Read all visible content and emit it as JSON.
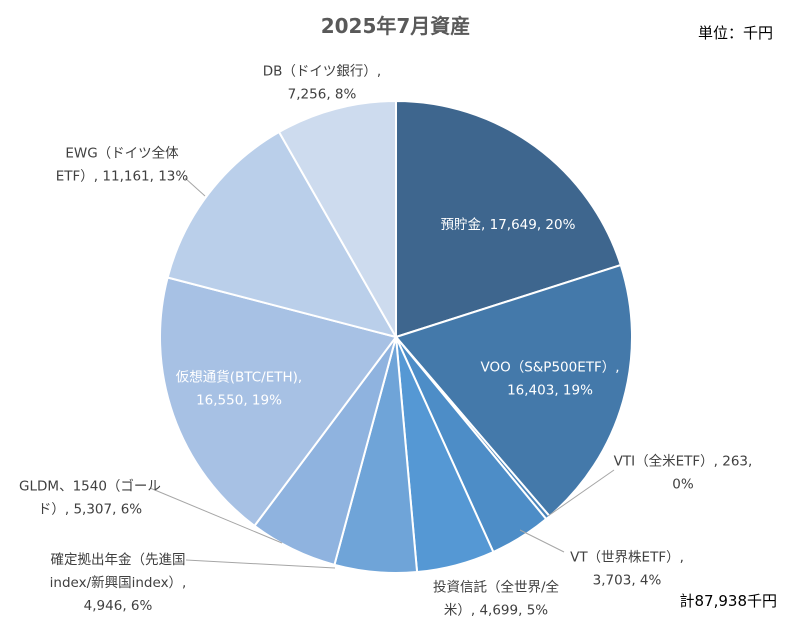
{
  "chart_data": {
    "type": "pie",
    "title": "2025年7月資産",
    "unit_note": "単位：千円",
    "total_note": "計87,938千円",
    "start_angle_deg": 0,
    "direction": "clockwise",
    "slices": [
      {
        "label": "預貯金",
        "value": 17649,
        "percent": 20,
        "color": "#3e668e",
        "lines": [
          "預貯金, 17,649, 20%"
        ],
        "label_inside": true,
        "text_color": "#ffffff"
      },
      {
        "label": "VOO（S&P500ETF）",
        "value": 16403,
        "percent": 19,
        "color": "#4479aa",
        "lines": [
          "VOO（S&P500ETF）,",
          "16,403, 19%"
        ],
        "label_inside": true,
        "text_color": "#ffffff"
      },
      {
        "label": "VTI（全米ETF）",
        "value": 263,
        "percent": 0,
        "color": "#4c86bc",
        "lines": [
          "VTI（全米ETF）, 263,",
          "0%"
        ],
        "label_inside": false,
        "text_color": "#404040"
      },
      {
        "label": "VT（世界株ETF）",
        "value": 3703,
        "percent": 4,
        "color": "#4d8dc7",
        "lines": [
          "VT（世界株ETF）,",
          "3,703, 4%"
        ],
        "label_inside": false,
        "text_color": "#404040"
      },
      {
        "label": "投資信託（全世界/全米）",
        "value": 4699,
        "percent": 5,
        "color": "#5598d4",
        "lines": [
          "投資信託（全世界/全",
          "米）, 4,699, 5%"
        ],
        "label_inside": false,
        "text_color": "#404040"
      },
      {
        "label": "確定拠出年金（先進国index/新興国index）",
        "value": 4946,
        "percent": 6,
        "color": "#6fa4d8",
        "lines": [
          "確定拠出年金（先進国",
          "index/新興国index）,",
          "4,946, 6%"
        ],
        "label_inside": false,
        "text_color": "#404040"
      },
      {
        "label": "GLDM、1540（ゴールド）",
        "value": 5307,
        "percent": 6,
        "color": "#8fb3df",
        "lines": [
          "GLDM、1540（ゴール",
          "ド）, 5,307, 6%"
        ],
        "label_inside": false,
        "text_color": "#404040"
      },
      {
        "label": "仮想通貨(BTC/ETH)",
        "value": 16550,
        "percent": 19,
        "color": "#a7c1e4",
        "lines": [
          "仮想通貨(BTC/ETH),",
          "16,550, 19%"
        ],
        "label_inside": true,
        "text_color": "#ffffff"
      },
      {
        "label": "EWG（ドイツ全体ETF）",
        "value": 11161,
        "percent": 13,
        "color": "#bacfea",
        "lines": [
          "EWG（ドイツ全体",
          "ETF）, 11,161, 13%"
        ],
        "label_inside": false,
        "text_color": "#404040"
      },
      {
        "label": "DB（ドイツ銀行）",
        "value": 7256,
        "percent": 8,
        "color": "#cddbee",
        "lines": [
          "DB（ドイツ銀行）,",
          "7,256, 8%"
        ],
        "label_inside": false,
        "text_color": "#404040"
      }
    ]
  }
}
